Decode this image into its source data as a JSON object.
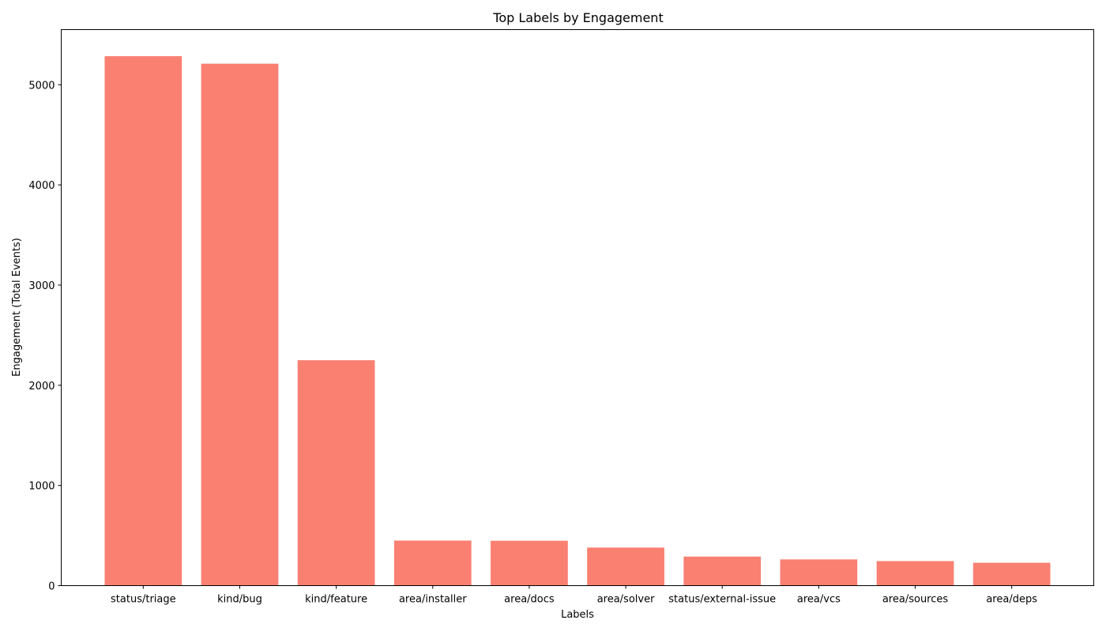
{
  "chart_data": {
    "type": "bar",
    "title": "Top Labels by Engagement",
    "xlabel": "Labels",
    "ylabel": "Engagement (Total Events)",
    "categories": [
      "status/triage",
      "kind/bug",
      "kind/feature",
      "area/installer",
      "area/docs",
      "area/solver",
      "status/external-issue",
      "area/vcs",
      "area/sources",
      "area/deps"
    ],
    "values": [
      5285,
      5210,
      2250,
      450,
      448,
      380,
      290,
      262,
      245,
      228
    ],
    "ylim": [
      0,
      5550
    ],
    "yticks": [
      0,
      1000,
      2000,
      3000,
      4000,
      5000
    ],
    "grid": false,
    "legend": "none",
    "bar_color": "#fa8072"
  }
}
